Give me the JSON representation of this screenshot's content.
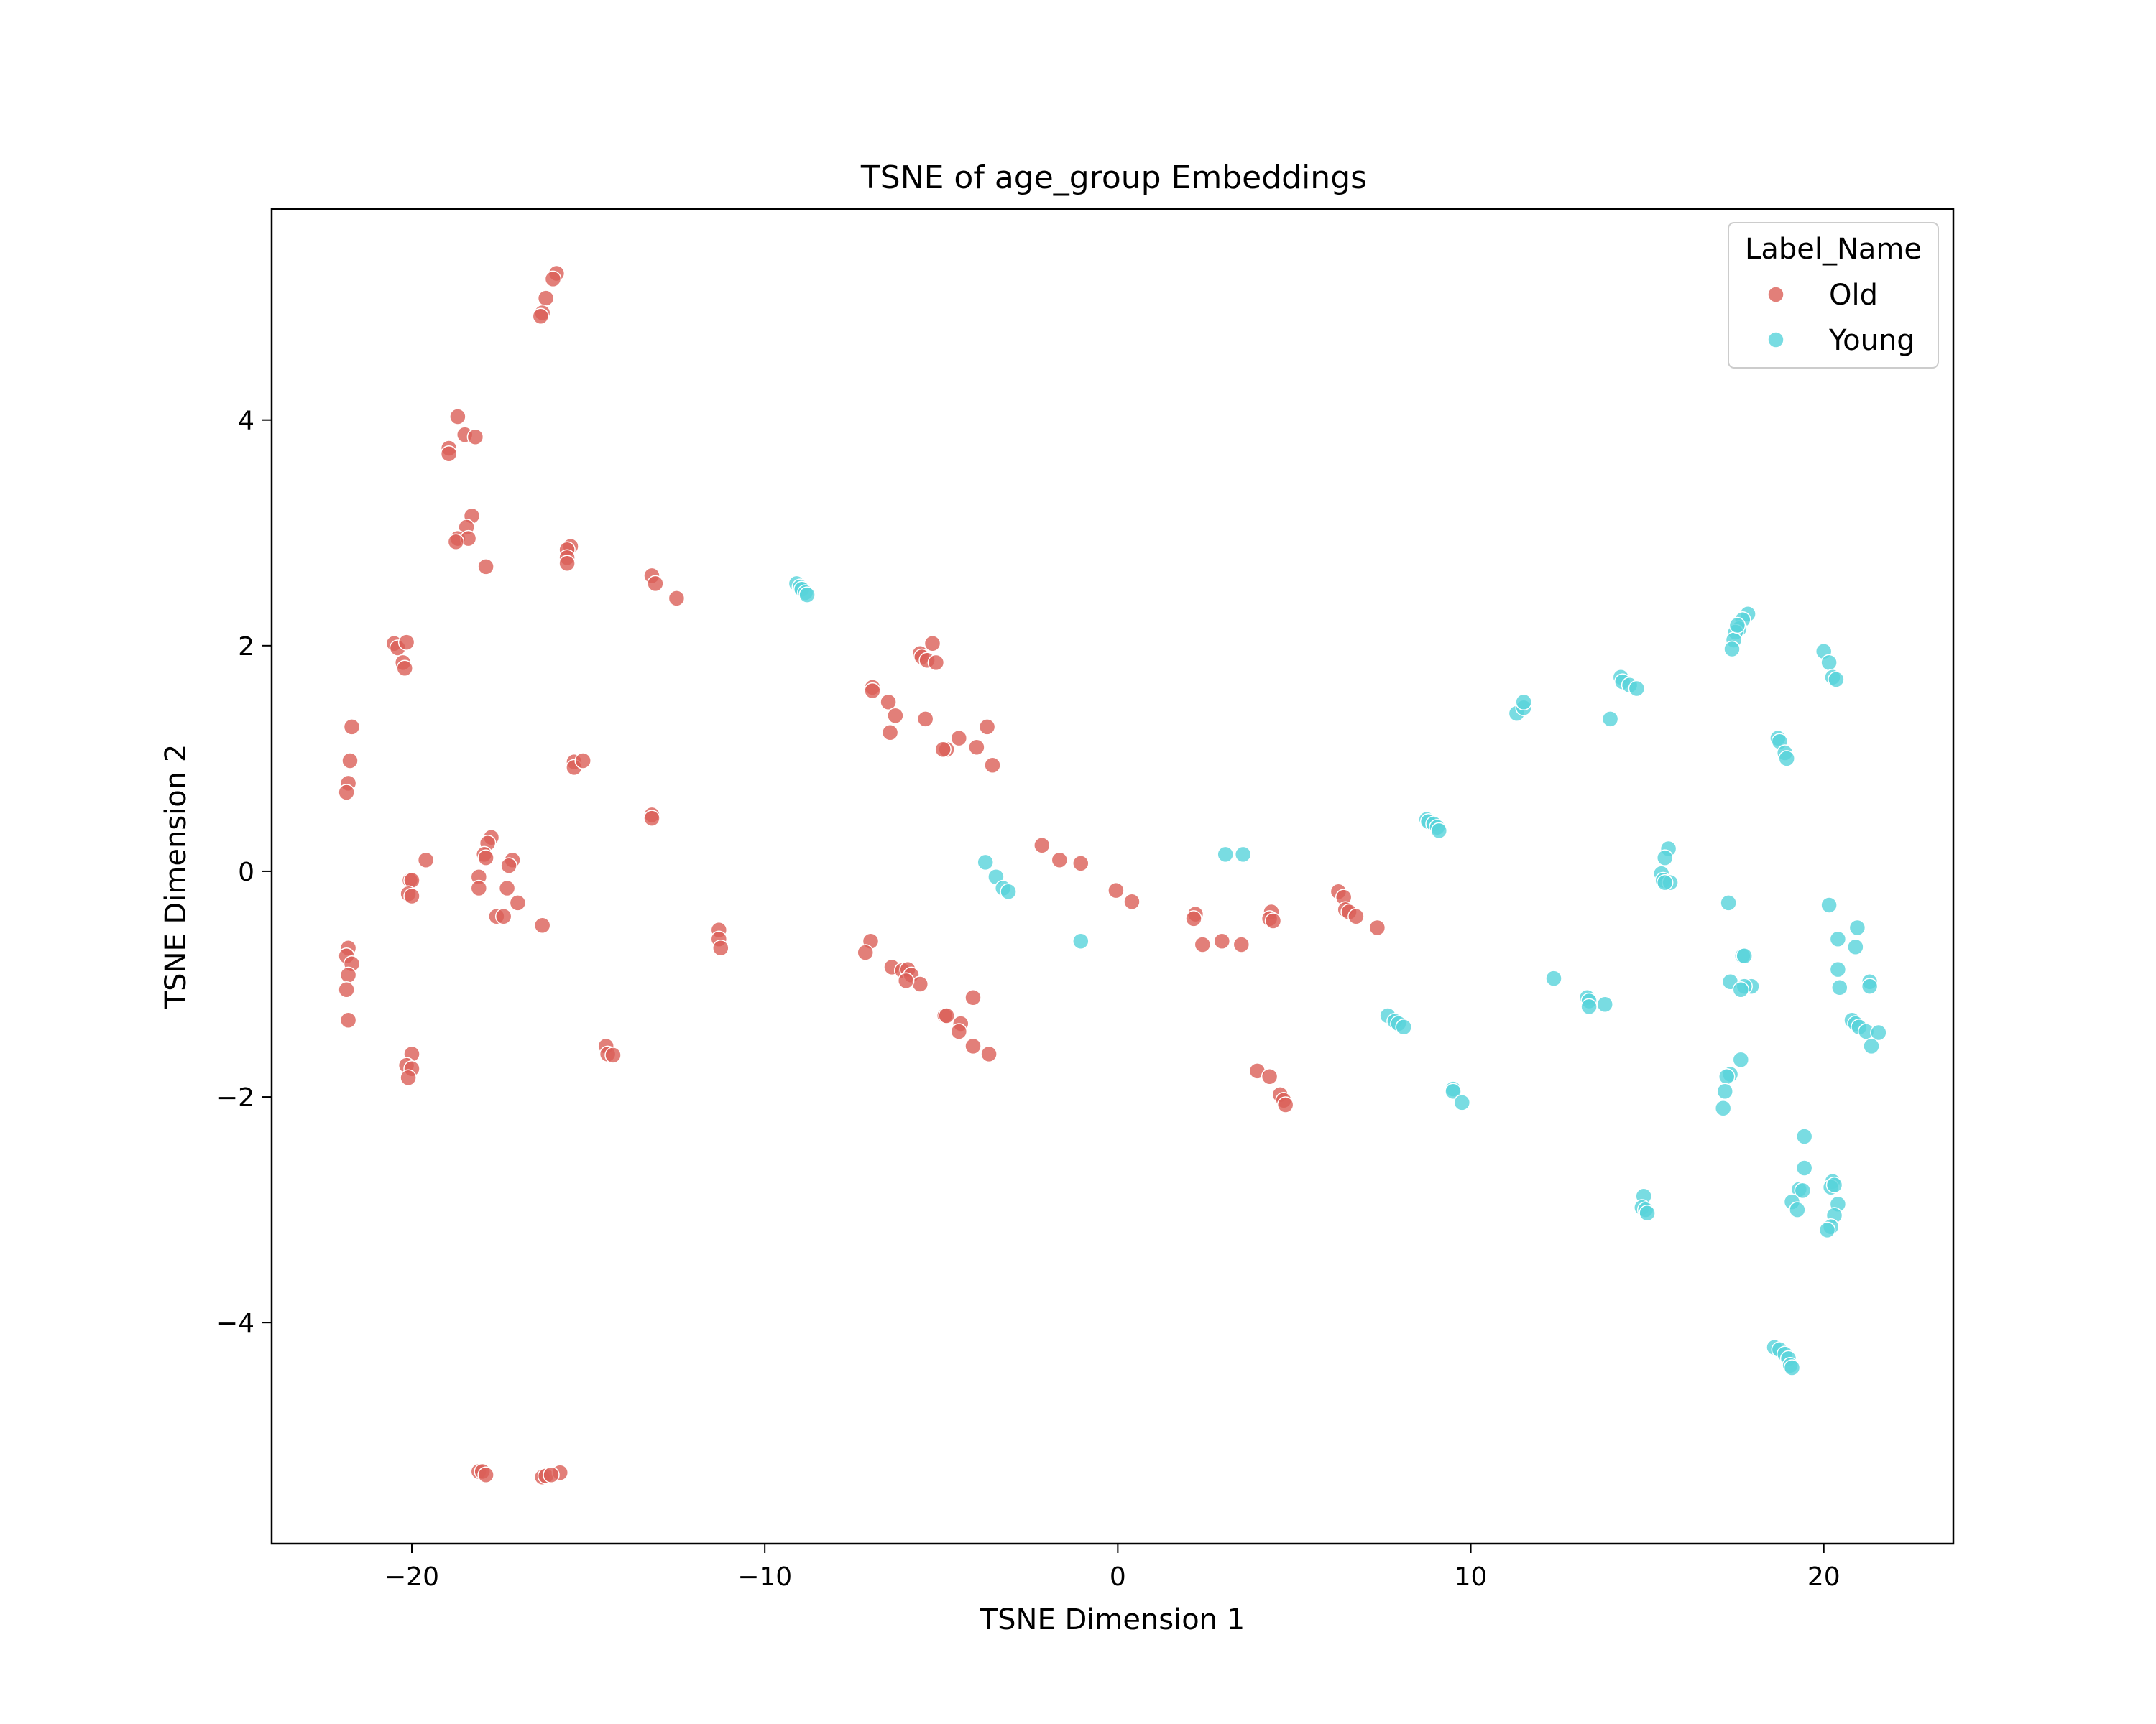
{
  "chart_data": {
    "type": "scatter",
    "title": "TSNE of age_group Embeddings",
    "xlabel": "TSNE Dimension 1",
    "ylabel": "TSNE Dimension 2",
    "xlim": [
      -23.97,
      23.67
    ],
    "ylim": [
      -5.96,
      5.87
    ],
    "xticks": [
      -20,
      -10,
      0,
      10,
      20
    ],
    "xtick_labels": [
      "−20",
      "−10",
      "0",
      "10",
      "20"
    ],
    "yticks": [
      -4,
      -2,
      0,
      2,
      4
    ],
    "ytick_labels": [
      "−4",
      "−2",
      "0",
      "2",
      "4"
    ],
    "grid": false,
    "legend": {
      "title": "Label_Name",
      "placement": "upper right",
      "entries": [
        "Old",
        "Young"
      ]
    },
    "series": [
      {
        "name": "Old",
        "color": "#db5f57",
        "points": [
          [
            -15.9,
            5.3
          ],
          [
            -16.0,
            5.25
          ],
          [
            -16.2,
            5.08
          ],
          [
            -16.3,
            4.95
          ],
          [
            -16.35,
            4.92
          ],
          [
            -18.7,
            4.03
          ],
          [
            -18.5,
            3.87
          ],
          [
            -18.2,
            3.85
          ],
          [
            -18.95,
            3.75
          ],
          [
            -18.95,
            3.7
          ],
          [
            -18.3,
            3.15
          ],
          [
            -18.45,
            3.05
          ],
          [
            -18.7,
            2.95
          ],
          [
            -18.4,
            2.95
          ],
          [
            -18.75,
            2.92
          ],
          [
            -17.9,
            2.7
          ],
          [
            -15.5,
            2.88
          ],
          [
            -15.6,
            2.85
          ],
          [
            -15.6,
            2.78
          ],
          [
            -15.6,
            2.73
          ],
          [
            -13.2,
            2.62
          ],
          [
            -13.1,
            2.55
          ],
          [
            -12.5,
            2.42
          ],
          [
            -20.5,
            2.02
          ],
          [
            -20.4,
            1.98
          ],
          [
            -20.15,
            2.03
          ],
          [
            -20.25,
            1.85
          ],
          [
            -20.2,
            1.8
          ],
          [
            -21.7,
            1.28
          ],
          [
            -21.75,
            0.98
          ],
          [
            -21.8,
            0.78
          ],
          [
            -21.85,
            0.7
          ],
          [
            -15.4,
            0.97
          ],
          [
            -15.4,
            0.92
          ],
          [
            -15.15,
            0.98
          ],
          [
            -13.2,
            0.5
          ],
          [
            -13.2,
            0.47
          ],
          [
            -20.05,
            -0.08
          ],
          [
            -20.0,
            -0.08
          ],
          [
            -20.1,
            -0.2
          ],
          [
            -20.0,
            -0.22
          ],
          [
            -19.6,
            0.1
          ],
          [
            -17.75,
            0.3
          ],
          [
            -17.85,
            0.25
          ],
          [
            -17.95,
            0.15
          ],
          [
            -17.9,
            0.12
          ],
          [
            -17.15,
            0.1
          ],
          [
            -18.1,
            -0.05
          ],
          [
            -17.25,
            0.05
          ],
          [
            -18.1,
            -0.15
          ],
          [
            -17.3,
            -0.15
          ],
          [
            -17.0,
            -0.28
          ],
          [
            -17.6,
            -0.4
          ],
          [
            -17.4,
            -0.4
          ],
          [
            -16.3,
            -0.48
          ],
          [
            -21.8,
            -0.68
          ],
          [
            -21.85,
            -0.75
          ],
          [
            -21.7,
            -0.82
          ],
          [
            -21.8,
            -0.92
          ],
          [
            -21.85,
            -1.05
          ],
          [
            -21.8,
            -1.32
          ],
          [
            -20.0,
            -1.62
          ],
          [
            -20.15,
            -1.72
          ],
          [
            -20.0,
            -1.75
          ],
          [
            -20.1,
            -1.83
          ],
          [
            -14.5,
            -1.55
          ],
          [
            -14.45,
            -1.62
          ],
          [
            -14.3,
            -1.63
          ],
          [
            -11.3,
            -0.52
          ],
          [
            -11.3,
            -0.6
          ],
          [
            -11.25,
            -0.68
          ],
          [
            -18.1,
            -5.32
          ],
          [
            -18.0,
            -5.32
          ],
          [
            -17.9,
            -5.35
          ],
          [
            -16.3,
            -5.37
          ],
          [
            -16.2,
            -5.36
          ],
          [
            -15.8,
            -5.33
          ],
          [
            -16.05,
            -5.35
          ],
          [
            -5.25,
            2.02
          ],
          [
            -5.6,
            1.93
          ],
          [
            -5.55,
            1.9
          ],
          [
            -5.4,
            1.87
          ],
          [
            -5.15,
            1.85
          ],
          [
            -6.95,
            1.63
          ],
          [
            -6.95,
            1.6
          ],
          [
            -6.5,
            1.5
          ],
          [
            -6.3,
            1.38
          ],
          [
            -5.45,
            1.35
          ],
          [
            -3.7,
            1.28
          ],
          [
            -6.45,
            1.23
          ],
          [
            -4.5,
            1.18
          ],
          [
            -4.0,
            1.1
          ],
          [
            -4.85,
            1.08
          ],
          [
            -4.95,
            1.08
          ],
          [
            -3.55,
            0.94
          ],
          [
            -2.15,
            0.23
          ],
          [
            -1.65,
            0.1
          ],
          [
            -1.05,
            0.07
          ],
          [
            -0.05,
            -0.17
          ],
          [
            0.4,
            -0.27
          ],
          [
            -7.0,
            -0.62
          ],
          [
            -7.15,
            -0.72
          ],
          [
            -6.4,
            -0.85
          ],
          [
            -6.1,
            -0.88
          ],
          [
            -5.95,
            -0.87
          ],
          [
            -5.85,
            -0.92
          ],
          [
            -5.6,
            -1.0
          ],
          [
            -6.0,
            -0.97
          ],
          [
            -4.1,
            -1.12
          ],
          [
            -4.9,
            -1.28
          ],
          [
            -4.85,
            -1.28
          ],
          [
            -4.45,
            -1.35
          ],
          [
            -4.5,
            -1.42
          ],
          [
            -4.1,
            -1.55
          ],
          [
            -3.65,
            -1.62
          ],
          [
            2.2,
            -0.38
          ],
          [
            2.15,
            -0.42
          ],
          [
            2.4,
            -0.65
          ],
          [
            2.95,
            -0.62
          ],
          [
            3.5,
            -0.65
          ],
          [
            4.35,
            -0.36
          ],
          [
            4.3,
            -0.42
          ],
          [
            4.4,
            -0.44
          ],
          [
            6.25,
            -0.18
          ],
          [
            6.4,
            -0.23
          ],
          [
            6.45,
            -0.34
          ],
          [
            6.55,
            -0.36
          ],
          [
            6.75,
            -0.4
          ],
          [
            7.35,
            -0.5
          ],
          [
            3.95,
            -1.77
          ],
          [
            4.3,
            -1.82
          ],
          [
            4.6,
            -1.98
          ],
          [
            4.7,
            -2.03
          ],
          [
            4.75,
            -2.07
          ]
        ]
      },
      {
        "name": "Young",
        "color": "#57d3db",
        "points": [
          [
            -9.1,
            2.55
          ],
          [
            -9.0,
            2.52
          ],
          [
            -8.95,
            2.5
          ],
          [
            -8.85,
            2.47
          ],
          [
            -8.8,
            2.45
          ],
          [
            -3.75,
            0.08
          ],
          [
            -3.45,
            -0.05
          ],
          [
            -3.25,
            -0.15
          ],
          [
            -3.1,
            -0.18
          ],
          [
            -1.05,
            -0.62
          ],
          [
            3.05,
            0.15
          ],
          [
            3.55,
            0.15
          ],
          [
            8.75,
            0.46
          ],
          [
            8.8,
            0.44
          ],
          [
            8.95,
            0.42
          ],
          [
            9.05,
            0.39
          ],
          [
            9.1,
            0.36
          ],
          [
            7.65,
            -1.28
          ],
          [
            7.85,
            -1.33
          ],
          [
            7.95,
            -1.35
          ],
          [
            8.1,
            -1.38
          ],
          [
            9.5,
            -1.93
          ],
          [
            9.5,
            -1.95
          ],
          [
            9.75,
            -2.05
          ],
          [
            11.3,
            1.4
          ],
          [
            11.5,
            1.45
          ],
          [
            11.5,
            1.5
          ],
          [
            14.25,
            1.72
          ],
          [
            14.3,
            1.68
          ],
          [
            14.5,
            1.65
          ],
          [
            14.7,
            1.62
          ],
          [
            13.95,
            1.35
          ],
          [
            12.35,
            -0.95
          ],
          [
            13.3,
            -1.12
          ],
          [
            13.35,
            -1.15
          ],
          [
            13.35,
            -1.2
          ],
          [
            13.8,
            -1.18
          ],
          [
            15.6,
            0.2
          ],
          [
            15.5,
            0.12
          ],
          [
            15.4,
            -0.02
          ],
          [
            15.45,
            -0.08
          ],
          [
            15.65,
            -0.1
          ],
          [
            15.5,
            -0.1
          ],
          [
            14.9,
            -2.88
          ],
          [
            14.85,
            -2.98
          ],
          [
            14.95,
            -3.0
          ],
          [
            15.0,
            -3.03
          ],
          [
            17.85,
            2.28
          ],
          [
            17.7,
            2.23
          ],
          [
            17.6,
            2.15
          ],
          [
            17.5,
            2.12
          ],
          [
            17.45,
            2.05
          ],
          [
            17.4,
            1.97
          ],
          [
            17.55,
            2.18
          ],
          [
            20.0,
            1.95
          ],
          [
            20.15,
            1.85
          ],
          [
            20.25,
            1.72
          ],
          [
            20.35,
            1.7
          ],
          [
            18.7,
            1.18
          ],
          [
            18.75,
            1.15
          ],
          [
            18.9,
            1.05
          ],
          [
            18.95,
            1.0
          ],
          [
            17.3,
            -0.28
          ],
          [
            20.15,
            -0.3
          ],
          [
            20.95,
            -0.5
          ],
          [
            20.4,
            -0.6
          ],
          [
            20.9,
            -0.67
          ],
          [
            17.7,
            -0.75
          ],
          [
            17.75,
            -0.75
          ],
          [
            20.4,
            -0.87
          ],
          [
            17.35,
            -0.98
          ],
          [
            17.95,
            -1.02
          ],
          [
            17.75,
            -1.02
          ],
          [
            17.65,
            -1.05
          ],
          [
            20.45,
            -1.03
          ],
          [
            21.3,
            -0.98
          ],
          [
            21.3,
            -1.02
          ],
          [
            20.8,
            -1.32
          ],
          [
            20.9,
            -1.35
          ],
          [
            21.0,
            -1.38
          ],
          [
            21.2,
            -1.42
          ],
          [
            21.55,
            -1.43
          ],
          [
            21.35,
            -1.55
          ],
          [
            17.65,
            -1.67
          ],
          [
            17.35,
            -1.8
          ],
          [
            17.25,
            -1.82
          ],
          [
            17.2,
            -1.95
          ],
          [
            17.15,
            -2.1
          ],
          [
            19.45,
            -2.35
          ],
          [
            19.45,
            -2.63
          ],
          [
            19.3,
            -2.82
          ],
          [
            19.4,
            -2.83
          ],
          [
            19.1,
            -2.93
          ],
          [
            19.25,
            -3.0
          ],
          [
            20.25,
            -2.75
          ],
          [
            20.2,
            -2.8
          ],
          [
            20.3,
            -2.78
          ],
          [
            20.4,
            -2.95
          ],
          [
            20.3,
            -3.05
          ],
          [
            20.2,
            -3.15
          ],
          [
            20.1,
            -3.18
          ],
          [
            18.6,
            -4.22
          ],
          [
            18.75,
            -4.24
          ],
          [
            18.9,
            -4.28
          ],
          [
            19.0,
            -4.32
          ],
          [
            19.05,
            -4.38
          ],
          [
            19.1,
            -4.4
          ]
        ]
      }
    ]
  }
}
